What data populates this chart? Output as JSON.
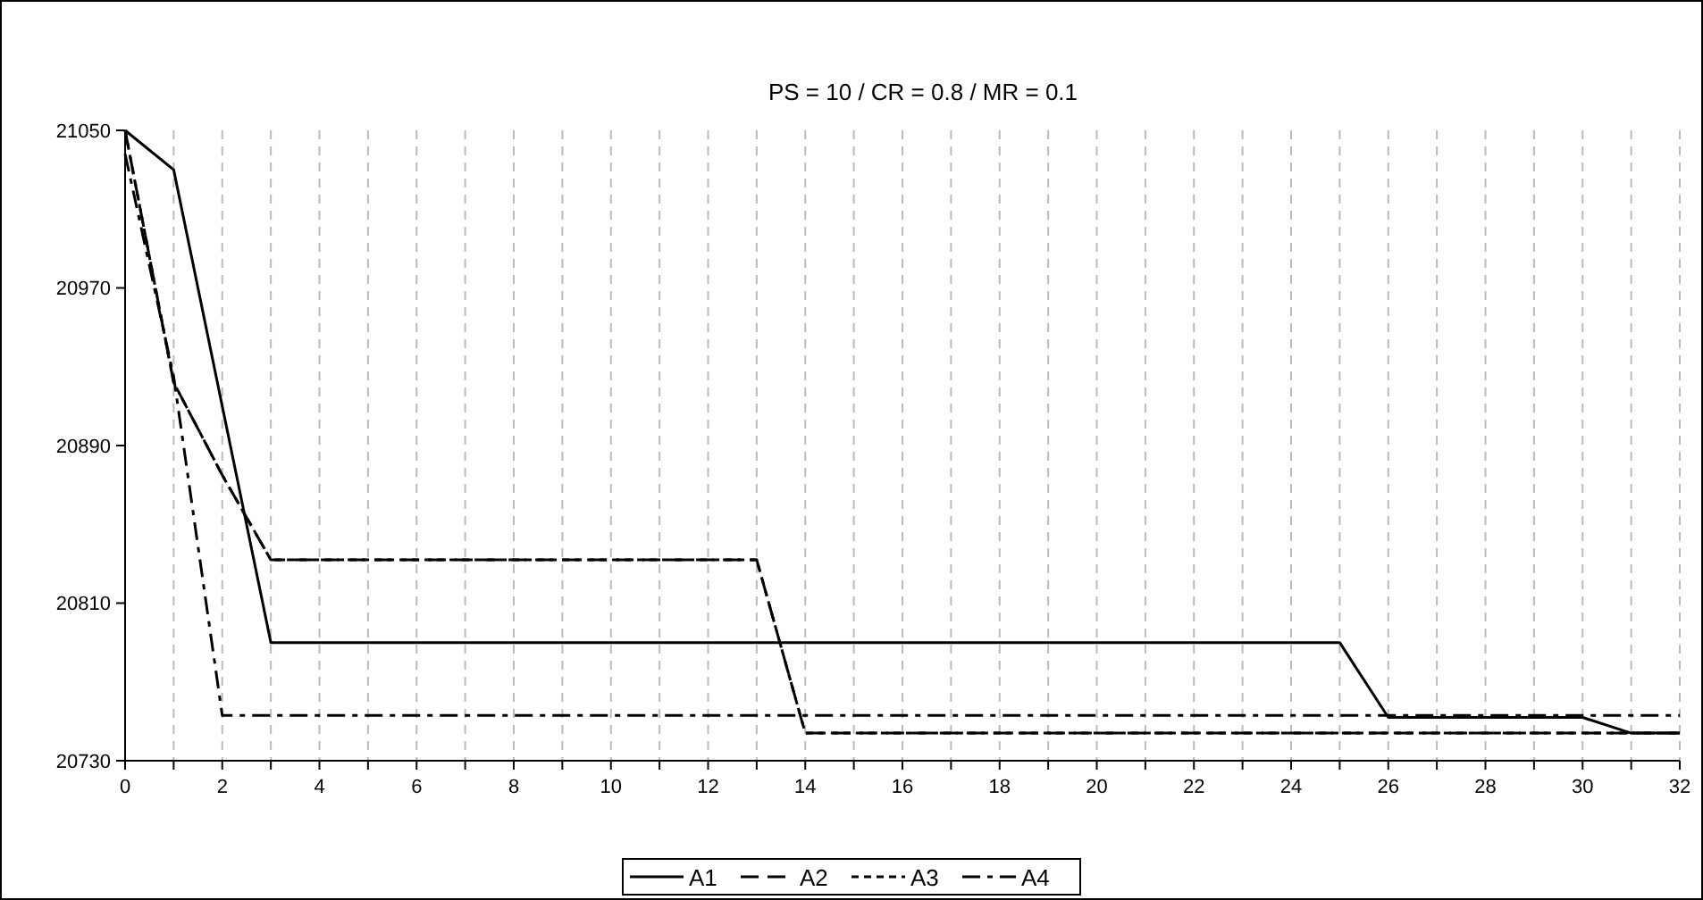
{
  "chart_data": {
    "type": "line",
    "title": "PS = 10 / CR = 0.8 / MR = 0.1",
    "x": [
      0,
      1,
      2,
      3,
      4,
      5,
      6,
      7,
      8,
      9,
      10,
      11,
      12,
      13,
      14,
      15,
      16,
      17,
      18,
      19,
      20,
      21,
      22,
      23,
      24,
      25,
      26,
      27,
      28,
      29,
      30,
      31,
      32
    ],
    "series": [
      {
        "name": "A1",
        "color": "#000000",
        "line_style": "solid",
        "values": [
          21050,
          21030,
          20910,
          20790,
          20790,
          20790,
          20790,
          20790,
          20790,
          20790,
          20790,
          20790,
          20790,
          20790,
          20790,
          20790,
          20790,
          20790,
          20790,
          20790,
          20790,
          20790,
          20790,
          20790,
          20790,
          20790,
          20752,
          20752,
          20752,
          20752,
          20752,
          20744,
          20744
        ]
      },
      {
        "name": "A2",
        "color": "#000000",
        "line_style": "dashed",
        "values": [
          21050,
          20922,
          20875,
          20832,
          20832,
          20832,
          20832,
          20832,
          20832,
          20832,
          20832,
          20832,
          20832,
          20832,
          20744,
          20744,
          20744,
          20744,
          20744,
          20744,
          20744,
          20744,
          20744,
          20744,
          20744,
          20744,
          20744,
          20744,
          20744,
          20744,
          20744,
          20744,
          20744
        ]
      },
      {
        "name": "A3",
        "color": "#000000",
        "line_style": "dotted",
        "values": [
          21050,
          20922,
          20875,
          20832,
          20832,
          20832,
          20832,
          20832,
          20832,
          20832,
          20832,
          20832,
          20832,
          20832,
          20744,
          20744,
          20744,
          20744,
          20744,
          20744,
          20744,
          20744,
          20744,
          20744,
          20744,
          20744,
          20744,
          20744,
          20744,
          20744,
          20744,
          20744,
          20744
        ]
      },
      {
        "name": "A4",
        "color": "#000000",
        "line_style": "dashdot",
        "values": [
          21038,
          20925,
          20753,
          20753,
          20753,
          20753,
          20753,
          20753,
          20753,
          20753,
          20753,
          20753,
          20753,
          20753,
          20753,
          20753,
          20753,
          20753,
          20753,
          20753,
          20753,
          20753,
          20753,
          20753,
          20753,
          20753,
          20753,
          20753,
          20753,
          20753,
          20753,
          20753,
          20753
        ]
      }
    ],
    "xlim": [
      0,
      32
    ],
    "xticks": [
      0,
      {
        "value": 1,
        "label": null
      },
      2,
      {
        "value": 3,
        "label": null
      },
      4,
      {
        "value": 5,
        "label": null
      },
      6,
      {
        "value": 7,
        "label": null
      },
      8,
      {
        "value": 9,
        "label": null
      },
      10,
      {
        "value": 11,
        "label": null
      },
      12,
      {
        "value": 13,
        "label": null
      },
      14,
      {
        "value": 15,
        "label": null
      },
      16,
      {
        "value": 17,
        "label": null
      },
      18,
      {
        "value": 19,
        "label": null
      },
      20,
      {
        "value": 21,
        "label": null
      },
      22,
      {
        "value": 23,
        "label": null
      },
      24,
      {
        "value": 25,
        "label": null
      },
      26,
      {
        "value": 27,
        "label": null
      },
      28,
      {
        "value": 29,
        "label": null
      },
      30,
      {
        "value": 31,
        "label": null
      },
      32
    ],
    "ylim": [
      20730,
      21050
    ],
    "yticks": [
      20730,
      20810,
      20890,
      20970,
      21050
    ],
    "grid": "x",
    "legend": "bottom",
    "marker": "none"
  }
}
